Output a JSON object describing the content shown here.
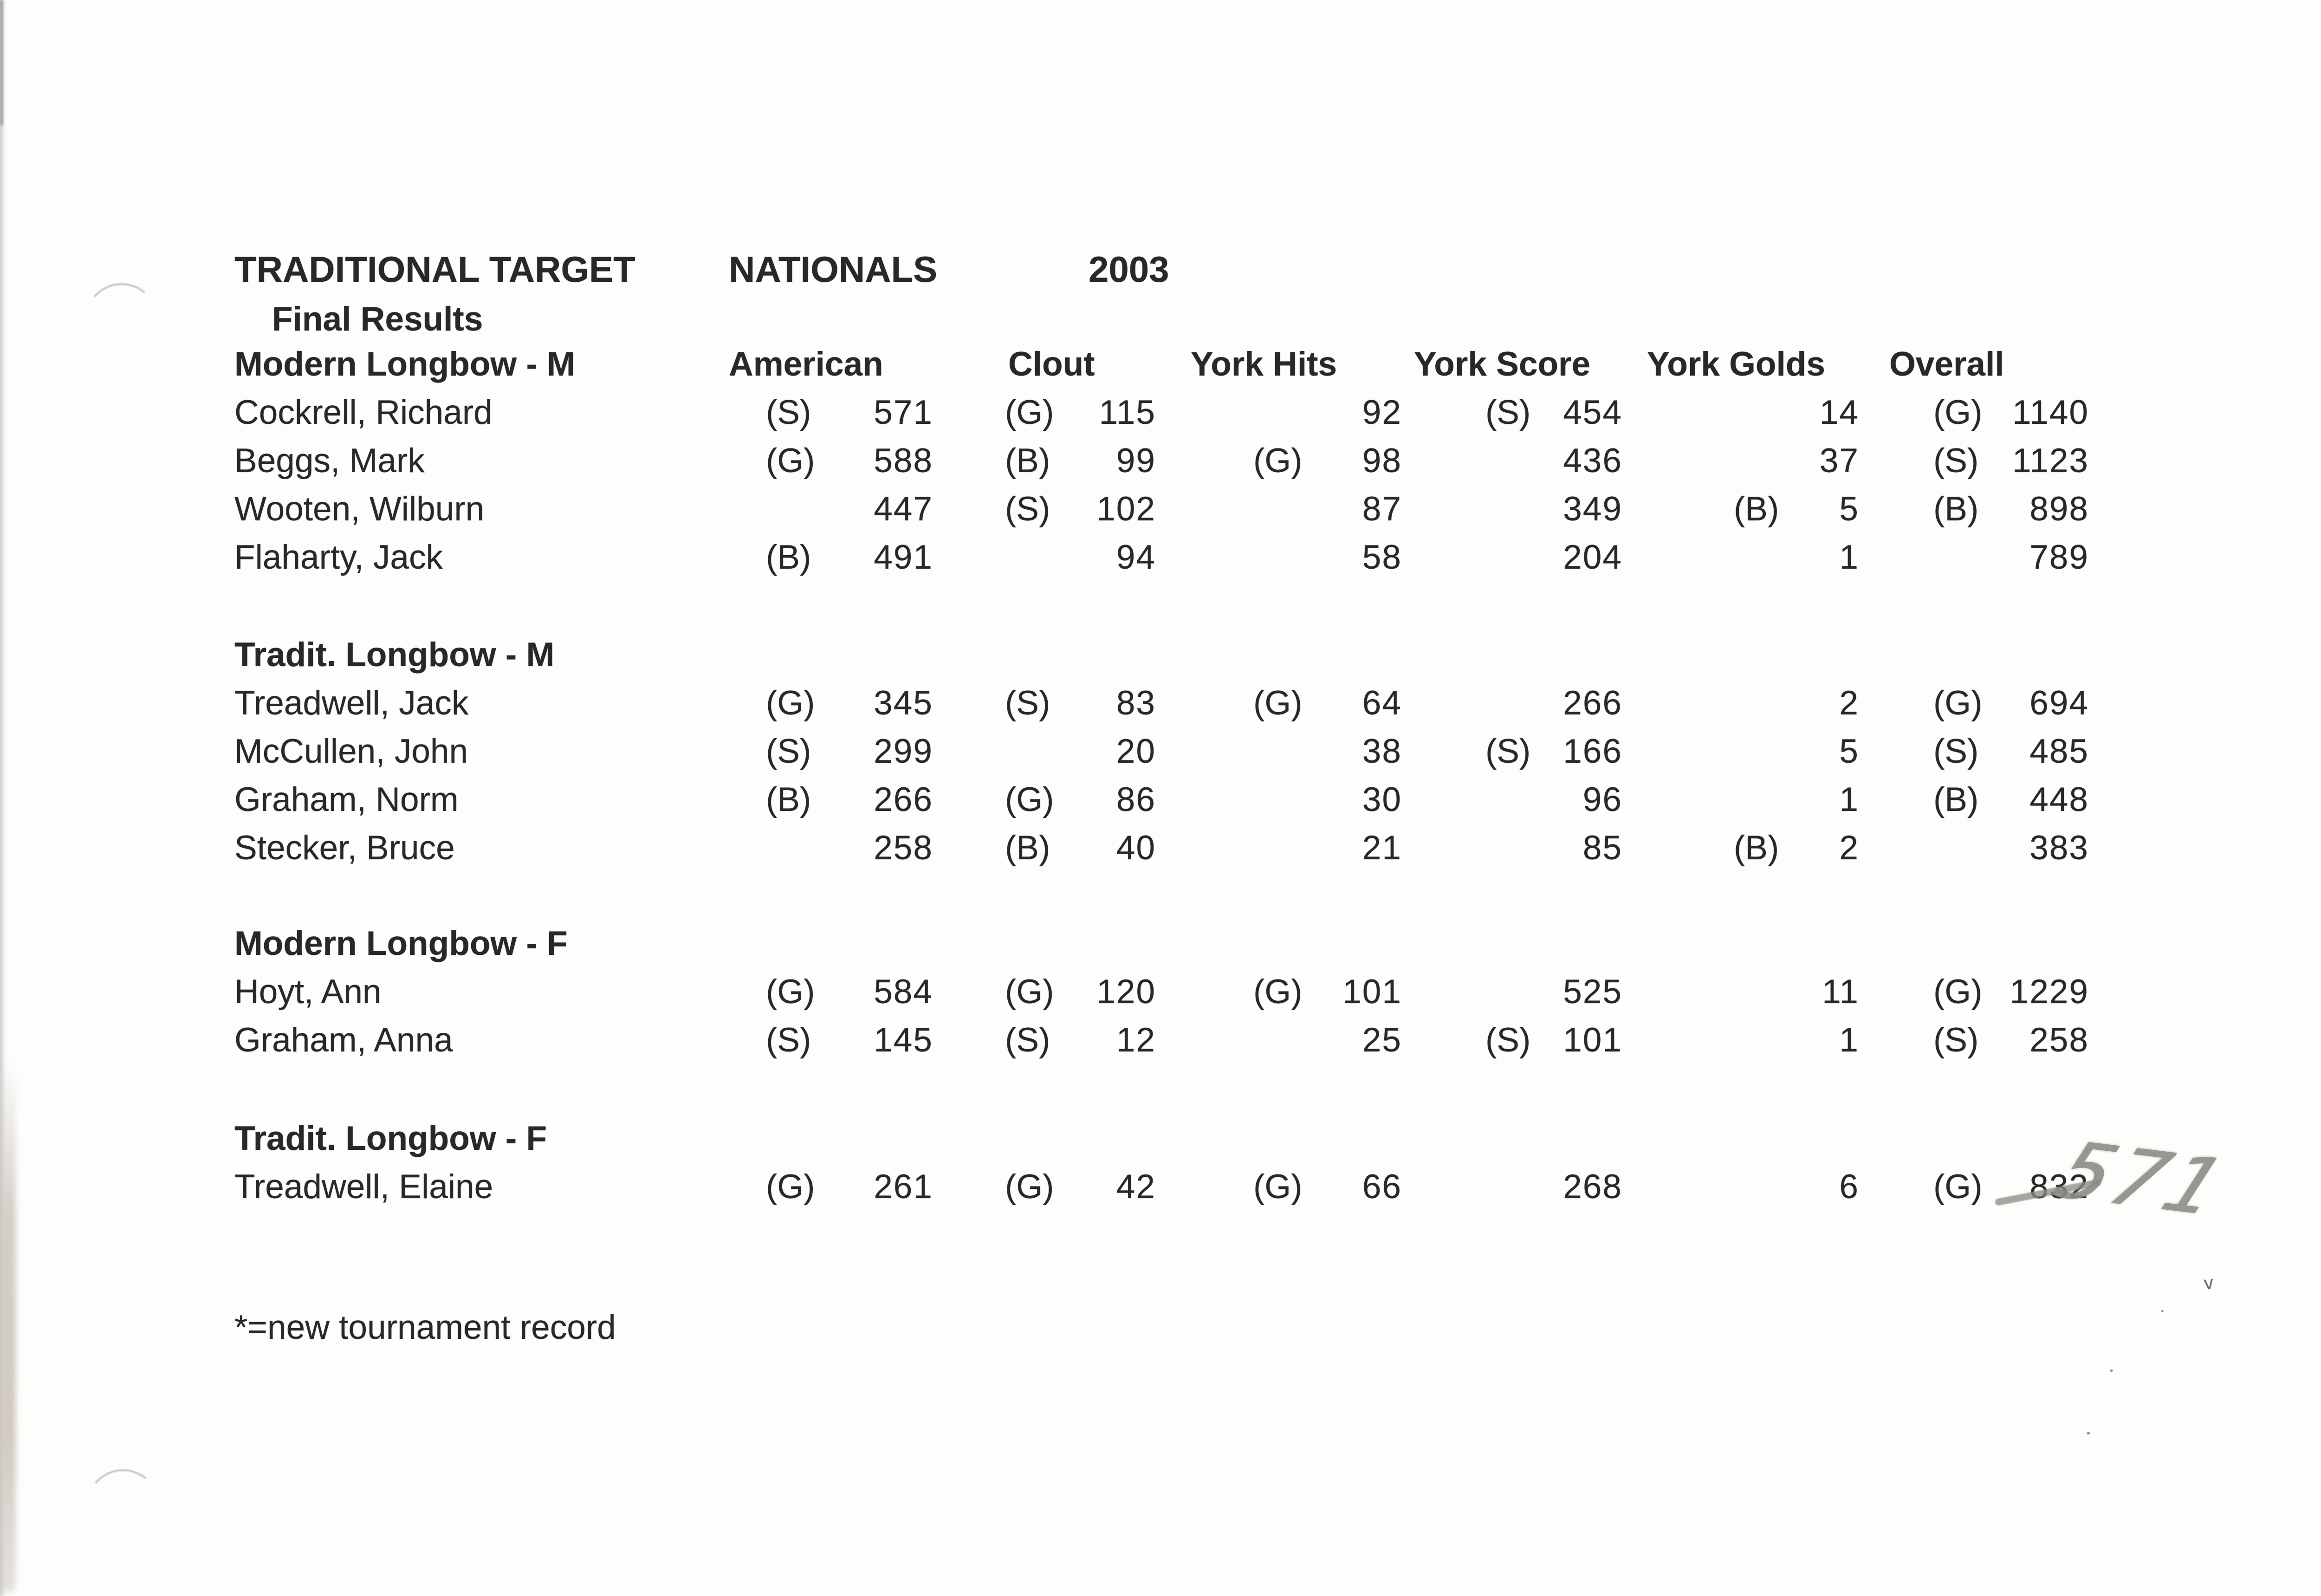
{
  "title": {
    "left": "TRADITIONAL TARGET",
    "center": "NATIONALS",
    "year": "2003"
  },
  "subtitle": "Final Results",
  "columns": [
    "American",
    "Clout",
    "York Hits",
    "York Score",
    "York Golds",
    "Overall"
  ],
  "column_keys": [
    "american",
    "clout",
    "york-hits",
    "york-score",
    "york-golds",
    "overall"
  ],
  "sections": [
    {
      "name": "Modern Longbow - M",
      "rows": [
        {
          "name": "Cockrell, Richard",
          "cells": [
            {
              "m": "(S)",
              "v": "571"
            },
            {
              "m": "(G)",
              "v": "115"
            },
            {
              "m": "",
              "v": "92"
            },
            {
              "m": "(S)",
              "v": "454"
            },
            {
              "m": "",
              "v": "14"
            },
            {
              "m": "(G)",
              "v": "1140"
            }
          ]
        },
        {
          "name": "Beggs, Mark",
          "cells": [
            {
              "m": "(G)",
              "v": "588"
            },
            {
              "m": "(B)",
              "v": "99"
            },
            {
              "m": "(G)",
              "v": "98"
            },
            {
              "m": "",
              "v": "436"
            },
            {
              "m": "",
              "v": "37"
            },
            {
              "m": "(S)",
              "v": "1123"
            }
          ]
        },
        {
          "name": "Wooten, Wilburn",
          "cells": [
            {
              "m": "",
              "v": "447"
            },
            {
              "m": "(S)",
              "v": "102"
            },
            {
              "m": "",
              "v": "87"
            },
            {
              "m": "",
              "v": "349"
            },
            {
              "m": "(B)",
              "v": "5"
            },
            {
              "m": "(B)",
              "v": "898"
            }
          ]
        },
        {
          "name": "Flaharty, Jack",
          "cells": [
            {
              "m": "(B)",
              "v": "491"
            },
            {
              "m": "",
              "v": "94"
            },
            {
              "m": "",
              "v": "58"
            },
            {
              "m": "",
              "v": "204"
            },
            {
              "m": "",
              "v": "1"
            },
            {
              "m": "",
              "v": "789"
            }
          ]
        }
      ]
    },
    {
      "name": "Tradit. Longbow - M",
      "rows": [
        {
          "name": "Treadwell, Jack",
          "cells": [
            {
              "m": "(G)",
              "v": "345"
            },
            {
              "m": "(S)",
              "v": "83"
            },
            {
              "m": "(G)",
              "v": "64"
            },
            {
              "m": "",
              "v": "266"
            },
            {
              "m": "",
              "v": "2"
            },
            {
              "m": "(G)",
              "v": "694"
            }
          ]
        },
        {
          "name": "McCullen, John",
          "cells": [
            {
              "m": "(S)",
              "v": "299"
            },
            {
              "m": "",
              "v": "20"
            },
            {
              "m": "",
              "v": "38"
            },
            {
              "m": "(S)",
              "v": "166"
            },
            {
              "m": "",
              "v": "5"
            },
            {
              "m": "(S)",
              "v": "485"
            }
          ]
        },
        {
          "name": "Graham, Norm",
          "cells": [
            {
              "m": "(B)",
              "v": "266"
            },
            {
              "m": "(G)",
              "v": "86"
            },
            {
              "m": "",
              "v": "30"
            },
            {
              "m": "",
              "v": "96"
            },
            {
              "m": "",
              "v": "1"
            },
            {
              "m": "(B)",
              "v": "448"
            }
          ]
        },
        {
          "name": "Stecker, Bruce",
          "cells": [
            {
              "m": "",
              "v": "258"
            },
            {
              "m": "(B)",
              "v": "40"
            },
            {
              "m": "",
              "v": "21"
            },
            {
              "m": "",
              "v": "85"
            },
            {
              "m": "(B)",
              "v": "2"
            },
            {
              "m": "",
              "v": "383"
            }
          ]
        }
      ]
    },
    {
      "name": "Modern Longbow - F",
      "rows": [
        {
          "name": "Hoyt, Ann",
          "cells": [
            {
              "m": "(G)",
              "v": "584"
            },
            {
              "m": "(G)",
              "v": "120"
            },
            {
              "m": "(G)",
              "v": "101"
            },
            {
              "m": "",
              "v": "525"
            },
            {
              "m": "",
              "v": "11"
            },
            {
              "m": "(G)",
              "v": "1229"
            }
          ]
        },
        {
          "name": "Graham, Anna",
          "cells": [
            {
              "m": "(S)",
              "v": "145"
            },
            {
              "m": "(S)",
              "v": "12"
            },
            {
              "m": "",
              "v": "25"
            },
            {
              "m": "(S)",
              "v": "101"
            },
            {
              "m": "",
              "v": "1"
            },
            {
              "m": "(S)",
              "v": "258"
            }
          ]
        }
      ]
    },
    {
      "name": "Tradit. Longbow - F",
      "rows": [
        {
          "name": "Treadwell, Elaine",
          "cells": [
            {
              "m": "(G)",
              "v": "261"
            },
            {
              "m": "(G)",
              "v": "42"
            },
            {
              "m": "(G)",
              "v": "66"
            },
            {
              "m": "",
              "v": "268"
            },
            {
              "m": "",
              "v": "6"
            },
            {
              "m": "(G)",
              "v": "832",
              "struck": true
            }
          ]
        }
      ]
    }
  ],
  "footnote": "*=new tournament record",
  "annotations": {
    "strikethrough_value": "832",
    "handwritten_correction": "571",
    "pencil_color": "#8e8c85"
  }
}
